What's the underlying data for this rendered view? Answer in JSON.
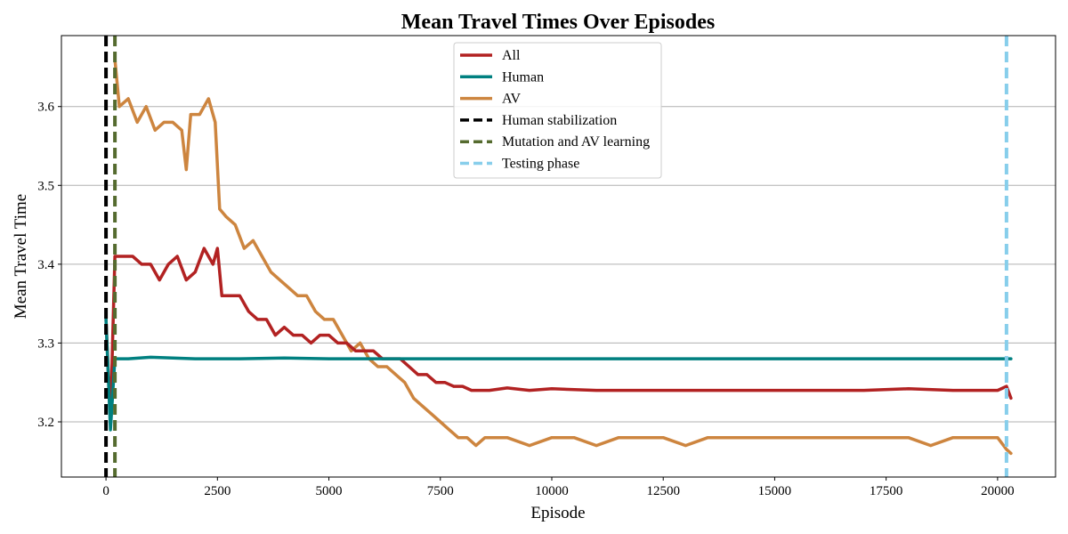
{
  "chart_data": {
    "type": "line",
    "title": "Mean Travel Times Over Episodes",
    "xlabel": "Episode",
    "ylabel": "Mean Travel Time",
    "xlim": [
      -1000,
      21300
    ],
    "ylim": [
      3.13,
      3.69
    ],
    "xticks": [
      0,
      2500,
      5000,
      7500,
      10000,
      12500,
      15000,
      17500,
      20000
    ],
    "xtick_labels": [
      "0",
      "2500",
      "5000",
      "7500",
      "10000",
      "12500",
      "15000",
      "17500",
      "20000"
    ],
    "yticks": [
      3.2,
      3.3,
      3.4,
      3.5,
      3.6
    ],
    "ytick_labels": [
      "3.2",
      "3.3",
      "3.4",
      "3.5",
      "3.6"
    ],
    "grid": "horizontal",
    "legend_position": "top-center",
    "series": [
      {
        "name": "All",
        "color": "#b22222",
        "x": [
          0,
          100,
          200,
          400,
          600,
          800,
          1000,
          1200,
          1400,
          1600,
          1800,
          2000,
          2200,
          2400,
          2500,
          2600,
          2800,
          3000,
          3200,
          3400,
          3600,
          3800,
          4000,
          4200,
          4400,
          4600,
          4800,
          5000,
          5200,
          5400,
          5600,
          5800,
          6000,
          6200,
          6400,
          6600,
          6800,
          7000,
          7200,
          7400,
          7600,
          7800,
          8000,
          8200,
          8400,
          8600,
          9000,
          9500,
          10000,
          11000,
          12000,
          13000,
          14000,
          15000,
          16000,
          17000,
          18000,
          19000,
          20000,
          20200,
          20300
        ],
        "y": [
          3.33,
          3.2,
          3.41,
          3.41,
          3.41,
          3.4,
          3.4,
          3.38,
          3.4,
          3.41,
          3.38,
          3.39,
          3.42,
          3.4,
          3.42,
          3.36,
          3.36,
          3.36,
          3.34,
          3.33,
          3.33,
          3.31,
          3.32,
          3.31,
          3.31,
          3.3,
          3.31,
          3.31,
          3.3,
          3.3,
          3.29,
          3.29,
          3.29,
          3.28,
          3.28,
          3.28,
          3.27,
          3.26,
          3.26,
          3.25,
          3.25,
          3.245,
          3.245,
          3.24,
          3.24,
          3.24,
          3.243,
          3.24,
          3.242,
          3.24,
          3.24,
          3.24,
          3.24,
          3.24,
          3.24,
          3.24,
          3.242,
          3.24,
          3.24,
          3.245,
          3.23
        ]
      },
      {
        "name": "Human",
        "color": "#008080",
        "x": [
          0,
          100,
          200,
          500,
          1000,
          1500,
          2000,
          3000,
          4000,
          5000,
          6000,
          7000,
          8000,
          10000,
          12000,
          14000,
          16000,
          18000,
          20000,
          20300
        ],
        "y": [
          3.33,
          3.19,
          3.28,
          3.28,
          3.282,
          3.281,
          3.28,
          3.28,
          3.281,
          3.28,
          3.28,
          3.28,
          3.28,
          3.28,
          3.28,
          3.28,
          3.28,
          3.28,
          3.28,
          3.28
        ]
      },
      {
        "name": "AV",
        "color": "#cd853f",
        "x": [
          200,
          300,
          500,
          700,
          900,
          1100,
          1300,
          1500,
          1700,
          1800,
          1900,
          2100,
          2300,
          2450,
          2550,
          2700,
          2900,
          3100,
          3300,
          3500,
          3700,
          3900,
          4100,
          4300,
          4500,
          4700,
          4900,
          5100,
          5300,
          5500,
          5700,
          5900,
          6100,
          6300,
          6500,
          6700,
          6900,
          7100,
          7300,
          7500,
          7700,
          7900,
          8100,
          8300,
          8500,
          9000,
          9500,
          10000,
          10500,
          11000,
          11500,
          12000,
          12500,
          13000,
          13500,
          14000,
          14500,
          15000,
          15500,
          16000,
          16500,
          17000,
          17500,
          18000,
          18500,
          19000,
          19500,
          20000,
          20200,
          20300
        ],
        "y": [
          3.66,
          3.6,
          3.61,
          3.58,
          3.6,
          3.57,
          3.58,
          3.58,
          3.57,
          3.52,
          3.59,
          3.59,
          3.61,
          3.58,
          3.47,
          3.46,
          3.45,
          3.42,
          3.43,
          3.41,
          3.39,
          3.38,
          3.37,
          3.36,
          3.36,
          3.34,
          3.33,
          3.33,
          3.31,
          3.29,
          3.3,
          3.28,
          3.27,
          3.27,
          3.26,
          3.25,
          3.23,
          3.22,
          3.21,
          3.2,
          3.19,
          3.18,
          3.18,
          3.17,
          3.18,
          3.18,
          3.17,
          3.18,
          3.18,
          3.17,
          3.18,
          3.18,
          3.18,
          3.17,
          3.18,
          3.18,
          3.18,
          3.18,
          3.18,
          3.18,
          3.18,
          3.18,
          3.18,
          3.18,
          3.17,
          3.18,
          3.18,
          3.18,
          3.165,
          3.16
        ]
      }
    ],
    "vlines": [
      {
        "name": "Human stabilization",
        "x": 0,
        "color": "#000000"
      },
      {
        "name": "Mutation and AV learning",
        "x": 200,
        "color": "#556b2f"
      },
      {
        "name": "Testing phase",
        "x": 20200,
        "color": "#87ceeb"
      }
    ]
  }
}
